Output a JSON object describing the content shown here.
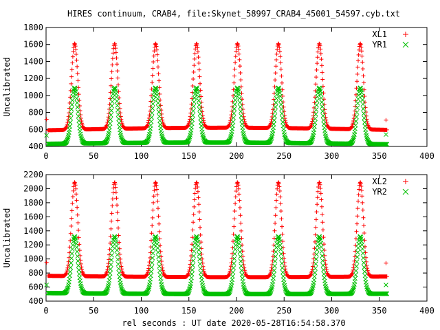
{
  "title": "HIRES continuum, CRAB4, file:Skynet_58997_CRAB4_45001_54597.cyb.txt",
  "xlabel": "rel seconds : UT date 2020-05-28T16:54:58.370",
  "colors": {
    "red": "#ff0000",
    "green": "#00c000",
    "axis": "#000000"
  },
  "chart_data": [
    {
      "type": "scatter",
      "ylabel": "Uncalibrated",
      "xlim": [
        0,
        400
      ],
      "ylim": [
        400,
        1800
      ],
      "xticks": [
        0,
        50,
        100,
        150,
        200,
        250,
        300,
        350,
        400
      ],
      "yticks": [
        400,
        600,
        800,
        1000,
        1200,
        1400,
        1600,
        1800
      ],
      "legend": "top-right",
      "grid": false,
      "peak_x": [
        30,
        72,
        115,
        158,
        201,
        244,
        287,
        330
      ],
      "x_range": [
        0,
        358
      ],
      "series": [
        {
          "name": "XL1",
          "marker": "plus",
          "color": "#ff0000",
          "baseline_start": 590,
          "baseline_end": 595,
          "baseline_mid": 620,
          "peak": 1610,
          "initial_value": 720,
          "tail_value": 710
        },
        {
          "name": "YR1",
          "marker": "cross",
          "color": "#00c000",
          "baseline_start": 430,
          "baseline_end": 425,
          "baseline_mid": 445,
          "peak": 1090,
          "initial_value": 530,
          "tail_value": 540
        }
      ]
    },
    {
      "type": "scatter",
      "ylabel": "Uncalibrated",
      "xlim": [
        0,
        400
      ],
      "ylim": [
        400,
        2200
      ],
      "xticks": [
        0,
        50,
        100,
        150,
        200,
        250,
        300,
        350,
        400
      ],
      "yticks": [
        400,
        600,
        800,
        1000,
        1200,
        1400,
        1600,
        1800,
        2000,
        2200
      ],
      "legend": "top-right",
      "grid": false,
      "peak_x": [
        30,
        72,
        115,
        158,
        201,
        244,
        287,
        330
      ],
      "x_range": [
        0,
        358
      ],
      "series": [
        {
          "name": "XL2",
          "marker": "plus",
          "color": "#ff0000",
          "baseline_start": 760,
          "baseline_end": 750,
          "baseline_mid": 740,
          "peak": 2090,
          "initial_value": 950,
          "tail_value": 940
        },
        {
          "name": "YR2",
          "marker": "cross",
          "color": "#00c000",
          "baseline_start": 515,
          "baseline_end": 505,
          "baseline_mid": 500,
          "peak": 1320,
          "initial_value": 630,
          "tail_value": 630
        }
      ]
    }
  ]
}
